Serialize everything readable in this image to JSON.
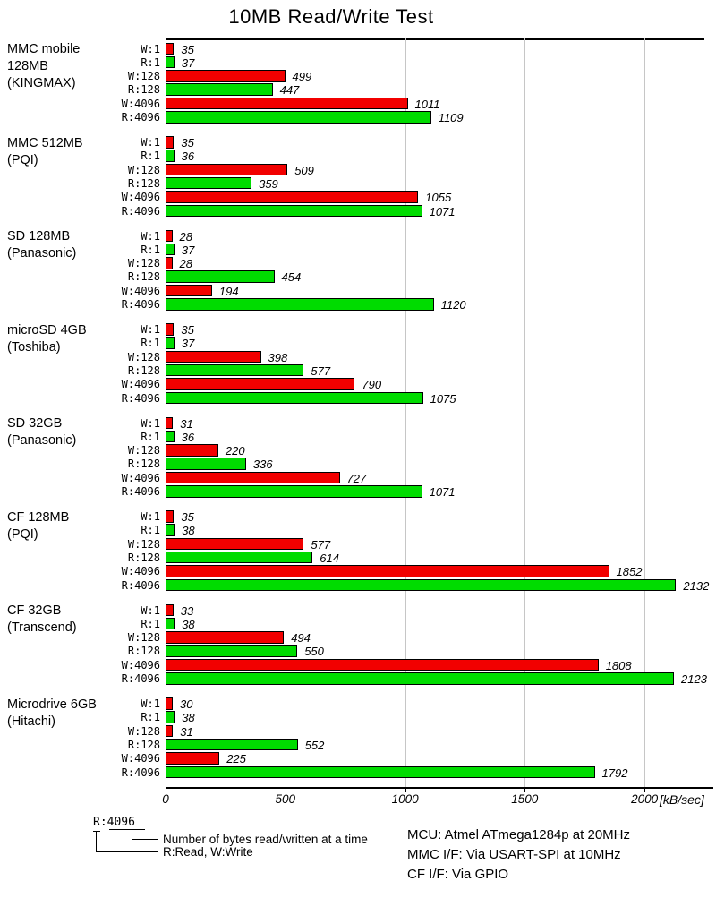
{
  "title": "10MB Read/Write Test",
  "chart_data": {
    "type": "bar",
    "orientation": "horizontal",
    "title": "10MB Read/Write Test",
    "xlabel": "[kB/sec]",
    "xlim": [
      0,
      2250
    ],
    "xticks": [
      0,
      500,
      1000,
      1500,
      2000
    ],
    "grid": "vertical-gridlines-on",
    "bar_labels": [
      "W:1",
      "R:1",
      "W:128",
      "R:128",
      "W:4096",
      "R:4096"
    ],
    "colors": {
      "write": "#f20000",
      "read": "#00dc00"
    },
    "groups": [
      {
        "device": [
          "MMC mobile",
          "128MB",
          "(KINGMAX)"
        ],
        "values": [
          35,
          37,
          499,
          447,
          1011,
          1109
        ]
      },
      {
        "device": [
          "MMC 512MB",
          "(PQI)"
        ],
        "values": [
          35,
          36,
          509,
          359,
          1055,
          1071
        ]
      },
      {
        "device": [
          "SD 128MB",
          "(Panasonic)"
        ],
        "values": [
          28,
          37,
          28,
          454,
          194,
          1120
        ]
      },
      {
        "device": [
          "microSD 4GB",
          "(Toshiba)"
        ],
        "values": [
          35,
          37,
          398,
          577,
          790,
          1075
        ]
      },
      {
        "device": [
          "SD 32GB",
          "(Panasonic)"
        ],
        "values": [
          31,
          36,
          220,
          336,
          727,
          1071
        ]
      },
      {
        "device": [
          "CF 128MB",
          "(PQI)"
        ],
        "values": [
          35,
          38,
          577,
          614,
          1852,
          2132
        ]
      },
      {
        "device": [
          "CF 32GB",
          "(Transcend)"
        ],
        "values": [
          33,
          38,
          494,
          550,
          1808,
          2123
        ]
      },
      {
        "device": [
          "Microdrive 6GB",
          "(Hitachi)"
        ],
        "values": [
          30,
          38,
          31,
          552,
          225,
          1792
        ]
      }
    ]
  },
  "legend": {
    "sample_label": "R:4096",
    "bytes_note": "Number of bytes read/written at a time",
    "rw_note": "R:Read, W:Write"
  },
  "notes": {
    "mcu": "MCU: Atmel ATmega1284p at 20MHz",
    "mmc_if": "MMC I/F: Via USART-SPI at 10MHz",
    "cf_if": "CF I/F: Via GPIO"
  }
}
